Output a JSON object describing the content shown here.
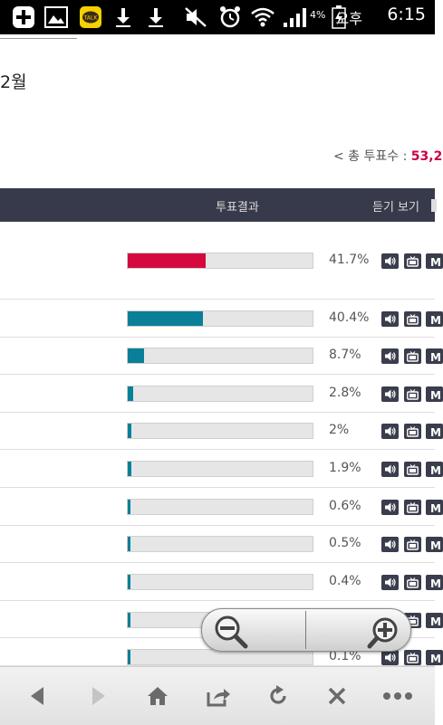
{
  "status_bar": {
    "battery": "4%",
    "ampm": "오후",
    "time": "6:15"
  },
  "page": {
    "month_label": "2월",
    "total_votes_label": "< 총 투표수 : ",
    "total_votes_value": "53,2"
  },
  "table": {
    "header_result": "투표결과",
    "header_listen": "듣기 보기"
  },
  "results": [
    {
      "percent_text": "41.7%",
      "percent": 41.7,
      "color": "#d40a3e"
    },
    {
      "percent_text": "40.4%",
      "percent": 40.4,
      "color": "#0a8098"
    },
    {
      "percent_text": "8.7%",
      "percent": 8.7,
      "color": "#0a8098"
    },
    {
      "percent_text": "2.8%",
      "percent": 2.8,
      "color": "#0a8098"
    },
    {
      "percent_text": "2%",
      "percent": 2,
      "color": "#0a8098"
    },
    {
      "percent_text": "1.9%",
      "percent": 1.9,
      "color": "#0a8098"
    },
    {
      "percent_text": "0.6%",
      "percent": 0.6,
      "color": "#0a8098"
    },
    {
      "percent_text": "0.5%",
      "percent": 0.5,
      "color": "#0a8098"
    },
    {
      "percent_text": "0.4%",
      "percent": 0.4,
      "color": "#0a8098"
    },
    {
      "percent_text": "",
      "percent": 0.3,
      "color": "#0a8098"
    },
    {
      "percent_text": "0.1%",
      "percent": 0.1,
      "color": "#0a8098"
    }
  ],
  "icons": {
    "row_icons": [
      "speaker-icon",
      "tv-icon",
      "music-video-icon"
    ],
    "toolbar": [
      "back-icon",
      "forward-icon",
      "home-icon",
      "share-icon",
      "refresh-icon",
      "close-icon",
      "more-icon"
    ],
    "zoom": [
      "zoom-out-icon",
      "zoom-in-icon"
    ]
  }
}
